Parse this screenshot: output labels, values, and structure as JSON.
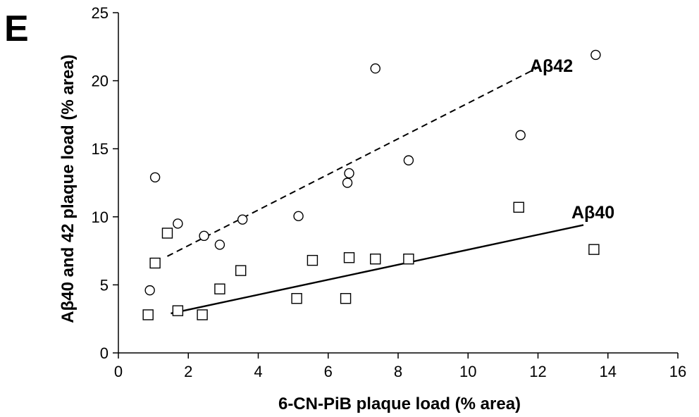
{
  "panel_label": "E",
  "chart_data": {
    "type": "scatter",
    "title": "",
    "xlabel": "6-CN-PiB plaque load (% area)",
    "ylabel": "Aβ40 and 42 plaque load (% area)",
    "xlim": [
      0,
      16
    ],
    "ylim": [
      0,
      25
    ],
    "x_ticks": [
      0,
      2,
      4,
      6,
      8,
      10,
      12,
      14,
      16
    ],
    "y_ticks": [
      0,
      5,
      10,
      15,
      20,
      25
    ],
    "grid": false,
    "series": [
      {
        "name": "Aβ42",
        "marker": "circle",
        "trendline": "dashed",
        "trend": [
          [
            1.4,
            7.1
          ],
          [
            12.1,
            21.1
          ]
        ],
        "points": [
          [
            0.9,
            4.6
          ],
          [
            1.05,
            12.9
          ],
          [
            1.4,
            8.8
          ],
          [
            1.7,
            9.5
          ],
          [
            2.45,
            8.6
          ],
          [
            2.9,
            7.95
          ],
          [
            3.55,
            9.8
          ],
          [
            5.15,
            10.05
          ],
          [
            6.55,
            12.5
          ],
          [
            6.6,
            13.2
          ],
          [
            7.35,
            20.9
          ],
          [
            8.3,
            14.15
          ],
          [
            11.5,
            16.0
          ],
          [
            13.65,
            21.9
          ]
        ]
      },
      {
        "name": "Aβ40",
        "marker": "square",
        "trendline": "solid",
        "trend": [
          [
            1.5,
            2.9
          ],
          [
            13.3,
            9.4
          ]
        ],
        "points": [
          [
            0.85,
            2.8
          ],
          [
            1.05,
            6.6
          ],
          [
            1.4,
            8.8
          ],
          [
            1.7,
            3.1
          ],
          [
            2.4,
            2.8
          ],
          [
            2.9,
            4.7
          ],
          [
            3.5,
            6.05
          ],
          [
            5.1,
            4.0
          ],
          [
            5.55,
            6.8
          ],
          [
            6.5,
            4.0
          ],
          [
            6.6,
            7.0
          ],
          [
            7.35,
            6.9
          ],
          [
            8.3,
            6.9
          ],
          [
            11.45,
            10.7
          ],
          [
            13.6,
            7.6
          ]
        ]
      }
    ]
  }
}
